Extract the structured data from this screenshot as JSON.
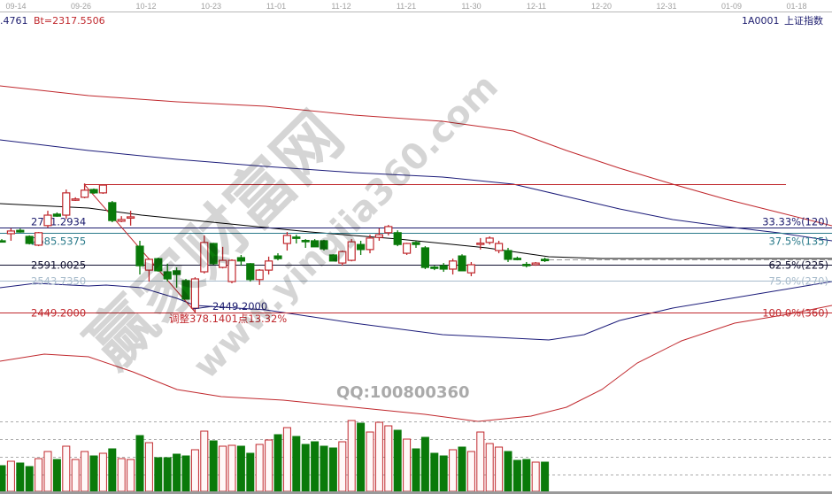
{
  "header": {
    "left_value": ".4761",
    "bt_label": "Bt=2317.5506",
    "symbol": "1A0001",
    "index_name": "上证指数"
  },
  "watermark": {
    "site_name": "赢家财富网",
    "site_url": "www.yingjia360.com",
    "qq": "QQ:100800360"
  },
  "colors": {
    "up": "#c0282d",
    "down": "#0a7a0a",
    "band_outer": "#c0282d",
    "band_inner": "#1c1c7a",
    "ma": "#000000"
  },
  "chart_data": {
    "type": "candlestick",
    "x_tick_labels": [
      "09-14",
      "09-26",
      "10-12",
      "10-23",
      "11-01",
      "11-12",
      "11-21",
      "11-30",
      "12-11",
      "12-20",
      "12-31",
      "01-09",
      "01-18"
    ],
    "candles": [
      [
        2662,
        2667,
        2657,
        2660
      ],
      [
        2683,
        2699,
        2662,
        2691
      ],
      [
        2693,
        2698,
        2686,
        2688
      ],
      [
        2675,
        2678,
        2651,
        2654
      ],
      [
        2649,
        2688,
        2646,
        2686
      ],
      [
        2707,
        2751,
        2701,
        2738
      ],
      [
        2741,
        2746,
        2733,
        2735
      ],
      [
        2738,
        2814,
        2727,
        2804
      ],
      [
        2783,
        2791,
        2780,
        2786
      ],
      [
        2791,
        2832,
        2788,
        2812
      ],
      [
        2814,
        2817,
        2801,
        2804
      ],
      [
        2804,
        2828,
        2801,
        2827
      ],
      [
        2775,
        2780,
        2717,
        2722
      ],
      [
        2720,
        2735,
        2717,
        2725
      ],
      [
        2730,
        2751,
        2707,
        2733
      ],
      [
        2646,
        2662,
        2562,
        2588
      ],
      [
        2575,
        2610,
        2541,
        2607
      ],
      [
        2609,
        2612,
        2570,
        2573
      ],
      [
        2570,
        2594,
        2541,
        2549
      ],
      [
        2573,
        2583,
        2523,
        2562
      ],
      [
        2544,
        2549,
        2489,
        2489
      ],
      [
        2462,
        2554,
        2449,
        2549
      ],
      [
        2570,
        2678,
        2565,
        2657
      ],
      [
        2654,
        2656,
        2591,
        2594
      ],
      [
        2583,
        2644,
        2580,
        2604
      ],
      [
        2541,
        2607,
        2536,
        2604
      ],
      [
        2612,
        2620,
        2588,
        2602
      ],
      [
        2594,
        2596,
        2541,
        2547
      ],
      [
        2547,
        2578,
        2531,
        2575
      ],
      [
        2575,
        2615,
        2562,
        2602
      ],
      [
        2617,
        2625,
        2604,
        2609
      ],
      [
        2654,
        2688,
        2633,
        2678
      ],
      [
        2673,
        2680,
        2654,
        2671
      ],
      [
        2663,
        2667,
        2641,
        2661
      ],
      [
        2662,
        2667,
        2644,
        2644
      ],
      [
        2662,
        2665,
        2633,
        2638
      ],
      [
        2620,
        2622,
        2602,
        2602
      ],
      [
        2596,
        2633,
        2588,
        2630
      ],
      [
        2604,
        2667,
        2601,
        2659
      ],
      [
        2651,
        2662,
        2620,
        2636
      ],
      [
        2636,
        2680,
        2625,
        2670
      ],
      [
        2672,
        2699,
        2662,
        2680
      ],
      [
        2686,
        2709,
        2678,
        2704
      ],
      [
        2686,
        2693,
        2646,
        2651
      ],
      [
        2625,
        2656,
        2620,
        2654
      ],
      [
        2657,
        2662,
        2641,
        2651
      ],
      [
        2641,
        2646,
        2578,
        2583
      ],
      [
        2584,
        2588,
        2575,
        2582
      ],
      [
        2588,
        2596,
        2570,
        2578
      ],
      [
        2578,
        2609,
        2562,
        2602
      ],
      [
        2617,
        2622,
        2573,
        2573
      ],
      [
        2567,
        2599,
        2557,
        2591
      ],
      [
        2653,
        2670,
        2636,
        2655
      ],
      [
        2657,
        2675,
        2651,
        2670
      ],
      [
        2633,
        2662,
        2625,
        2654
      ],
      [
        2633,
        2641,
        2599,
        2607
      ],
      [
        2610,
        2615,
        2604,
        2608
      ],
      [
        2592,
        2599,
        2583,
        2590
      ],
      [
        2591,
        2599,
        2588,
        2596
      ],
      [
        2607,
        2612,
        2599,
        2605
      ]
    ],
    "volume": [
      29,
      34,
      32,
      28,
      37,
      45,
      36,
      51,
      36,
      45,
      40,
      43,
      48,
      37,
      36,
      63,
      55,
      38,
      38,
      42,
      40,
      47,
      68,
      57,
      51,
      52,
      51,
      43,
      53,
      58,
      64,
      72,
      62,
      53,
      56,
      51,
      49,
      56,
      80,
      77,
      67,
      78,
      74,
      69,
      59,
      48,
      61,
      43,
      40,
      47,
      50,
      45,
      67,
      54,
      50,
      45,
      35,
      36,
      33,
      33
    ],
    "fib_levels": [
      {
        "price": "2701.2934",
        "label": "33.33%(120)",
        "color": "#1c1c6e"
      },
      {
        "price": "2685.5375",
        "label": "37.5%(135)",
        "color": "#2a7a8a"
      },
      {
        "price": "2591.0025",
        "label": "62.5%(225)",
        "color": "#101030"
      },
      {
        "price": "2543.7350",
        "label": "75.0%(270)",
        "color": "#a8bccc"
      },
      {
        "price": "2449.2000",
        "label": "100.0%(360)",
        "color": "#c0282d"
      }
    ],
    "low_annotation": "2449.2000",
    "correction_annotation": "调整378.1401点13.32%"
  }
}
